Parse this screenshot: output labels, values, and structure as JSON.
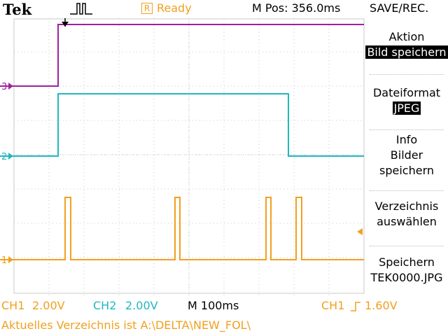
{
  "header": {
    "brand": "Tek",
    "acquisition_icon": "pulse-trigger-icon",
    "status_icon": "R",
    "status_text": "Ready",
    "position_readout": "M Pos: 356.0ms",
    "menu_title": "SAVE/REC."
  },
  "colors": {
    "ch1": "#f0a020",
    "ch2": "#20b8c0",
    "ch3": "#a020a0",
    "grid": "#c8c8c8",
    "background": "#ffffff"
  },
  "channel_markers": {
    "ch1": "1",
    "ch2": "2",
    "ch3": "3"
  },
  "side_menu": {
    "action": {
      "title": "Aktion",
      "value": "Bild speichern"
    },
    "format": {
      "title": "Dateiformat",
      "value": "JPEG"
    },
    "info": {
      "line1": "Info",
      "line2": "Bilder",
      "line3": "speichern"
    },
    "directory": {
      "line1": "Verzeichnis",
      "line2": "auswählen"
    },
    "save": {
      "line1": "Speichern",
      "line2": "TEK0000.JPG"
    }
  },
  "readouts": {
    "ch1_label": "CH1",
    "ch1_scale": "2.00V",
    "ch2_label": "CH2",
    "ch2_scale": "2.00V",
    "timebase": "M 100ms",
    "trigger_source": "CH1",
    "trigger_level": "1.60V"
  },
  "footer": {
    "directory_message": "Aktuelles Verzeichnis ist A:\\DELTA\\NEW_FOL\\"
  }
}
